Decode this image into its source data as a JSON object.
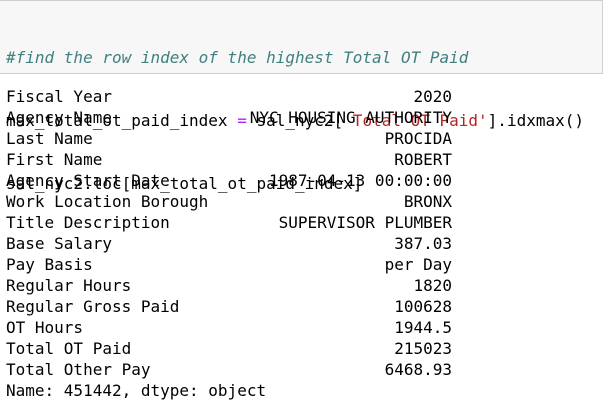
{
  "code": {
    "comment": "#find the row index of the highest Total OT Paid",
    "line2_var": "max_total_ot_paid_index",
    "line2_eq": " = ",
    "line2_obj": "sal_nyc2[",
    "line2_str": "'Total OT Paid'",
    "line2_tail": "].idxmax()",
    "line3": "sal_nyc2.loc[max_total_ot_paid_index]"
  },
  "colors": {
    "comment": "#408080",
    "operator": "#aa22ff",
    "string": "#ba2121",
    "cell_bg": "#f7f7f7",
    "cell_border": "#cfcfcf"
  },
  "output": {
    "rows": [
      {
        "key": "Fiscal Year",
        "value": "2020"
      },
      {
        "key": "Agency Name",
        "value": "NYC HOUSING AUTHORITY"
      },
      {
        "key": "Last Name",
        "value": "PROCIDA"
      },
      {
        "key": "First Name",
        "value": "ROBERT"
      },
      {
        "key": "Agency Start Date",
        "value": "1987-04-13 00:00:00"
      },
      {
        "key": "Work Location Borough",
        "value": "BRONX"
      },
      {
        "key": "Title Description",
        "value": "SUPERVISOR PLUMBER"
      },
      {
        "key": "Base Salary",
        "value": "387.03"
      },
      {
        "key": "Pay Basis",
        "value": "per Day"
      },
      {
        "key": "Regular Hours",
        "value": "1820"
      },
      {
        "key": "Regular Gross Paid",
        "value": "100628"
      },
      {
        "key": "OT Hours",
        "value": "1944.5"
      },
      {
        "key": "Total OT Paid",
        "value": "215023"
      },
      {
        "key": "Total Other Pay",
        "value": "6468.93"
      }
    ],
    "footer": "Name: 451442, dtype: object"
  }
}
